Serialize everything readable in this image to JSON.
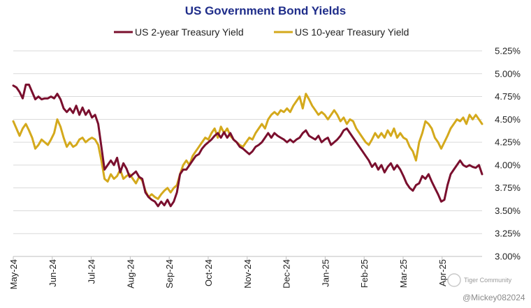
{
  "chart_data": {
    "type": "line",
    "title": "US Government Bond Yields",
    "xlabel": "",
    "ylabel": "",
    "ylim": [
      3.0,
      5.25
    ],
    "yticks": [
      "5.25%",
      "5.00%",
      "4.75%",
      "4.50%",
      "4.25%",
      "4.00%",
      "3.75%",
      "3.50%",
      "3.25%",
      "3.00%"
    ],
    "xticks": [
      "May-24",
      "Jun-24",
      "Jul-24",
      "Aug-24",
      "Sep-24",
      "Oct-24",
      "Nov-24",
      "Dec-24",
      "Jan-25",
      "Feb-25",
      "Mar-25",
      "Apr-25"
    ],
    "grid": true,
    "legend_position": "top",
    "series": [
      {
        "name": "US 2-year Treasury Yield",
        "color": "#7a0f2e",
        "values": [
          4.87,
          4.85,
          4.8,
          4.73,
          4.88,
          4.88,
          4.8,
          4.72,
          4.75,
          4.72,
          4.73,
          4.73,
          4.75,
          4.73,
          4.78,
          4.72,
          4.62,
          4.58,
          4.62,
          4.57,
          4.65,
          4.55,
          4.63,
          4.55,
          4.6,
          4.52,
          4.55,
          4.45,
          4.2,
          3.95,
          4.0,
          4.05,
          4.0,
          4.08,
          3.92,
          4.02,
          3.96,
          3.87,
          3.9,
          3.93,
          3.87,
          3.85,
          3.7,
          3.65,
          3.62,
          3.6,
          3.55,
          3.6,
          3.56,
          3.62,
          3.55,
          3.6,
          3.7,
          3.9,
          3.95,
          3.95,
          4.0,
          4.05,
          4.1,
          4.12,
          4.18,
          4.22,
          4.25,
          4.28,
          4.32,
          4.35,
          4.3,
          4.36,
          4.3,
          4.35,
          4.28,
          4.25,
          4.2,
          4.18,
          4.15,
          4.12,
          4.15,
          4.2,
          4.22,
          4.25,
          4.3,
          4.35,
          4.3,
          4.35,
          4.32,
          4.3,
          4.28,
          4.25,
          4.28,
          4.25,
          4.28,
          4.3,
          4.35,
          4.38,
          4.32,
          4.3,
          4.28,
          4.32,
          4.25,
          4.28,
          4.3,
          4.22,
          4.25,
          4.28,
          4.32,
          4.38,
          4.4,
          4.35,
          4.3,
          4.25,
          4.2,
          4.15,
          4.1,
          4.05,
          3.98,
          4.02,
          3.95,
          4.0,
          3.92,
          3.98,
          4.02,
          3.95,
          4.0,
          3.95,
          3.88,
          3.8,
          3.75,
          3.72,
          3.78,
          3.8,
          3.88,
          3.85,
          3.9,
          3.82,
          3.75,
          3.68,
          3.6,
          3.62,
          3.78,
          3.9,
          3.95,
          4.0,
          4.05,
          4.0,
          3.98,
          4.0,
          3.98,
          3.97,
          4.0,
          3.9
        ]
      },
      {
        "name": "US 10-year Treasury Yield",
        "color": "#d4a91c",
        "values": [
          4.48,
          4.4,
          4.32,
          4.4,
          4.45,
          4.38,
          4.3,
          4.18,
          4.22,
          4.28,
          4.25,
          4.22,
          4.28,
          4.35,
          4.5,
          4.42,
          4.3,
          4.2,
          4.25,
          4.2,
          4.22,
          4.28,
          4.3,
          4.25,
          4.28,
          4.3,
          4.28,
          4.22,
          4.05,
          3.85,
          3.82,
          3.9,
          3.85,
          3.88,
          3.95,
          3.85,
          3.88,
          3.9,
          3.85,
          3.8,
          3.87,
          3.83,
          3.72,
          3.65,
          3.68,
          3.65,
          3.63,
          3.68,
          3.72,
          3.75,
          3.7,
          3.75,
          3.78,
          3.9,
          4.0,
          4.05,
          4.0,
          4.1,
          4.15,
          4.2,
          4.25,
          4.3,
          4.28,
          4.35,
          4.4,
          4.3,
          4.42,
          4.35,
          4.4,
          4.32,
          4.28,
          4.25,
          4.22,
          4.2,
          4.25,
          4.3,
          4.28,
          4.35,
          4.4,
          4.45,
          4.4,
          4.5,
          4.55,
          4.58,
          4.55,
          4.6,
          4.58,
          4.62,
          4.58,
          4.65,
          4.7,
          4.75,
          4.62,
          4.78,
          4.72,
          4.65,
          4.6,
          4.55,
          4.58,
          4.55,
          4.5,
          4.55,
          4.6,
          4.55,
          4.48,
          4.52,
          4.45,
          4.5,
          4.48,
          4.4,
          4.35,
          4.3,
          4.25,
          4.22,
          4.28,
          4.35,
          4.3,
          4.35,
          4.3,
          4.38,
          4.32,
          4.4,
          4.3,
          4.35,
          4.3,
          4.28,
          4.2,
          4.15,
          4.05,
          4.25,
          4.35,
          4.48,
          4.45,
          4.4,
          4.3,
          4.25,
          4.18,
          4.25,
          4.32,
          4.4,
          4.45,
          4.5,
          4.48,
          4.52,
          4.45,
          4.55,
          4.5,
          4.55,
          4.5,
          4.45
        ]
      }
    ]
  },
  "watermark": {
    "brand": "Tiger Community",
    "handle": "@Mickey082024"
  }
}
